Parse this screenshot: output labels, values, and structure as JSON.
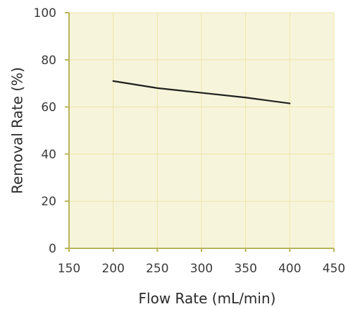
{
  "chart_data": {
    "type": "line",
    "title": "",
    "xlabel": "Flow Rate (mL/min)",
    "ylabel": "Removal Rate (%)",
    "xlim": [
      150,
      450
    ],
    "ylim": [
      0,
      100
    ],
    "xticks": [
      "150",
      "200",
      "250",
      "300",
      "350",
      "400",
      "450"
    ],
    "yticks": [
      "0",
      "20",
      "40",
      "60",
      "80",
      "100"
    ],
    "grid": true,
    "series": [
      {
        "x": [
          200,
          250,
          300,
          350,
          400
        ],
        "y": [
          71,
          68,
          66,
          64,
          61.5
        ]
      }
    ],
    "colors": {
      "plot_background": "#f7f4dc",
      "grid": "#ece6a6",
      "axis": "#b8b45a",
      "line": "#1f1f1f"
    }
  }
}
